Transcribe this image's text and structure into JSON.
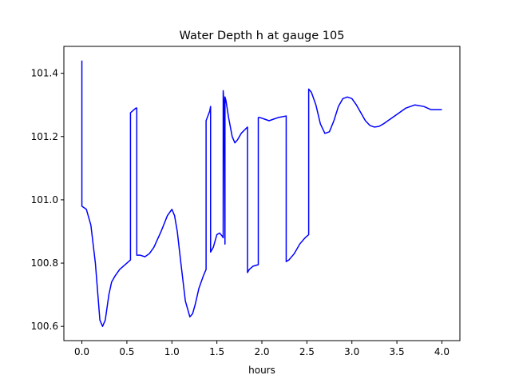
{
  "chart_data": {
    "type": "line",
    "title": "Water Depth h at gauge 105",
    "xlabel": "hours",
    "ylabel": "",
    "xlim": [
      -0.2,
      4.2
    ],
    "ylim": [
      100.555,
      101.485
    ],
    "xticks": [
      0.0,
      0.5,
      1.0,
      1.5,
      2.0,
      2.5,
      3.0,
      3.5,
      4.0
    ],
    "xtick_labels": [
      "0.0",
      "0.5",
      "1.0",
      "1.5",
      "2.0",
      "2.5",
      "3.0",
      "3.5",
      "4.0"
    ],
    "yticks": [
      100.6,
      100.8,
      101.0,
      101.2,
      101.4
    ],
    "ytick_labels": [
      "100.6",
      "100.8",
      "101.0",
      "101.2",
      "101.4"
    ],
    "grid": false,
    "legend": "none",
    "series": [
      {
        "color": "#0000ff",
        "x": [
          0.0,
          0.0,
          0.0,
          0.05,
          0.1,
          0.15,
          0.2,
          0.23,
          0.26,
          0.3,
          0.33,
          0.37,
          0.42,
          0.48,
          0.54,
          0.54,
          0.56,
          0.6,
          0.61,
          0.61,
          0.65,
          0.7,
          0.75,
          0.8,
          0.88,
          0.95,
          1.0,
          1.03,
          1.06,
          1.1,
          1.15,
          1.2,
          1.23,
          1.26,
          1.3,
          1.35,
          1.38,
          1.38,
          1.42,
          1.43,
          1.43,
          1.46,
          1.5,
          1.53,
          1.56,
          1.57,
          1.57,
          1.58,
          1.59,
          1.59,
          1.6,
          1.63,
          1.67,
          1.7,
          1.73,
          1.77,
          1.84,
          1.84,
          1.86,
          1.9,
          1.96,
          1.96,
          1.98,
          2.03,
          2.08,
          2.13,
          2.18,
          2.27,
          2.27,
          2.3,
          2.36,
          2.42,
          2.48,
          2.52,
          2.52,
          2.55,
          2.6,
          2.65,
          2.7,
          2.75,
          2.8,
          2.85,
          2.9,
          2.95,
          3.0,
          3.05,
          3.1,
          3.15,
          3.2,
          3.25,
          3.3,
          3.35,
          3.4,
          3.5,
          3.6,
          3.7,
          3.8,
          3.88,
          3.95,
          4.0
        ],
        "y": [
          101.44,
          100.98,
          100.98,
          100.97,
          100.92,
          100.8,
          100.62,
          100.6,
          100.62,
          100.7,
          100.74,
          100.76,
          100.78,
          100.795,
          100.81,
          101.275,
          101.28,
          101.29,
          101.29,
          100.825,
          100.825,
          100.82,
          100.83,
          100.85,
          100.9,
          100.95,
          100.97,
          100.95,
          100.9,
          100.8,
          100.68,
          100.63,
          100.64,
          100.67,
          100.72,
          100.76,
          100.78,
          101.25,
          101.28,
          101.295,
          100.835,
          100.85,
          100.89,
          100.895,
          100.885,
          100.88,
          101.345,
          101.3,
          100.86,
          101.325,
          101.315,
          101.26,
          101.2,
          101.18,
          101.19,
          101.21,
          101.23,
          100.77,
          100.78,
          100.79,
          100.795,
          101.26,
          101.26,
          101.255,
          101.25,
          101.255,
          101.26,
          101.265,
          100.805,
          100.81,
          100.83,
          100.86,
          100.88,
          100.89,
          101.35,
          101.34,
          101.3,
          101.24,
          101.21,
          101.215,
          101.25,
          101.295,
          101.32,
          101.325,
          101.32,
          101.3,
          101.275,
          101.25,
          101.235,
          101.23,
          101.232,
          101.24,
          101.25,
          101.27,
          101.29,
          101.3,
          101.295,
          101.285,
          101.285,
          101.285
        ]
      }
    ]
  }
}
